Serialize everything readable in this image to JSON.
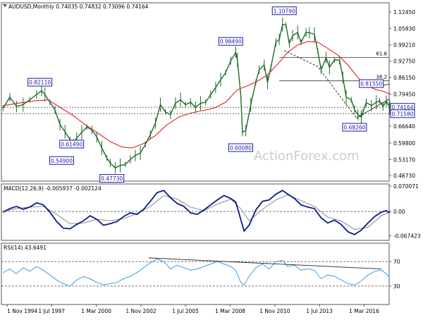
{
  "chart_data": {
    "type": "line",
    "symbol": "AUDUSD,Monthly",
    "ohlc": {
      "open": "0.74035",
      "high": "0.74832",
      "low": "0.73096",
      "close": "0.74164"
    },
    "watermark": "ActionForex.com",
    "colors": {
      "price": "#1d6b2a",
      "ma": "#e02020",
      "macd": "#0a1a8c",
      "signal": "#8a8a8a",
      "rsi": "#3aa0e6",
      "box_border": "#1a1aa0",
      "box_text": "#1a1aa0",
      "box_fill": "#ffffff",
      "grid": "#444444"
    },
    "x_ticks": [
      "1 Nov 1994",
      "1 Jul 1997",
      "1 Mar 2000",
      "1 Nov 2002",
      "1 Jul 2005",
      "1 Mar 2008",
      "1 Nov 2010",
      "1 Jul 2013",
      "1 Mar 2016"
    ],
    "x_range": [
      "1994-07",
      "2017-09"
    ],
    "price_panel": {
      "ylim": [
        0.445,
        1.161
      ],
      "y_ticks": [
        "1.12450",
        "1.05830",
        "0.99210",
        "0.92750",
        "0.86150",
        "0.79450",
        "0.73020",
        "0.66640",
        "0.59800",
        "0.53170",
        "0.46730"
      ],
      "current_labels": [
        "0.74164",
        "0.71580"
      ],
      "fib_levels": [
        {
          "label": "61.8",
          "value": 0.9414
        },
        {
          "label": "38.2",
          "value": 0.8478
        }
      ],
      "annotations": [
        {
          "text": "1.10790",
          "date": 2011.4,
          "value": 1.1079
        },
        {
          "text": "0.98490",
          "date": 2008.2,
          "value": 0.9849
        },
        {
          "text": "0.82110",
          "date": 1996.8,
          "value": 0.8211
        },
        {
          "text": "0.81550",
          "date": 2016.6,
          "value": 0.8155
        },
        {
          "text": "0.74164",
          "date": 2017.6,
          "value": 0.74164
        },
        {
          "text": "0.71580",
          "date": 2017.6,
          "value": 0.7158
        },
        {
          "text": "0.68260",
          "date": 2015.6,
          "value": 0.6826
        },
        {
          "text": "0.60080",
          "date": 2008.8,
          "value": 0.6008
        },
        {
          "text": "0.61490",
          "date": 1998.7,
          "value": 0.6149
        },
        {
          "text": "0.54900",
          "date": 1998.1,
          "value": 0.549
        },
        {
          "text": "0.47730",
          "date": 2001.1,
          "value": 0.4773
        }
      ],
      "price_series": [
        [
          1994.6,
          0.738
        ],
        [
          1995.0,
          0.782
        ],
        [
          1995.4,
          0.745
        ],
        [
          1995.8,
          0.752
        ],
        [
          1996.2,
          0.772
        ],
        [
          1996.6,
          0.793
        ],
        [
          1996.9,
          0.808
        ],
        [
          1997.1,
          0.793
        ],
        [
          1997.4,
          0.762
        ],
        [
          1997.7,
          0.731
        ],
        [
          1998.0,
          0.672
        ],
        [
          1998.3,
          0.643
        ],
        [
          1998.6,
          0.612
        ],
        [
          1998.8,
          0.598
        ],
        [
          1999.0,
          0.618
        ],
        [
          1999.3,
          0.641
        ],
        [
          1999.6,
          0.662
        ],
        [
          1999.9,
          0.651
        ],
        [
          2000.2,
          0.622
        ],
        [
          2000.5,
          0.578
        ],
        [
          2000.8,
          0.538
        ],
        [
          2001.0,
          0.518
        ],
        [
          2001.3,
          0.498
        ],
        [
          2001.6,
          0.508
        ],
        [
          2001.9,
          0.512
        ],
        [
          2002.2,
          0.532
        ],
        [
          2002.5,
          0.548
        ],
        [
          2002.8,
          0.558
        ],
        [
          2003.1,
          0.592
        ],
        [
          2003.4,
          0.632
        ],
        [
          2003.7,
          0.678
        ],
        [
          2004.0,
          0.752
        ],
        [
          2004.3,
          0.723
        ],
        [
          2004.6,
          0.712
        ],
        [
          2004.9,
          0.758
        ],
        [
          2005.2,
          0.772
        ],
        [
          2005.5,
          0.752
        ],
        [
          2005.8,
          0.762
        ],
        [
          2006.1,
          0.741
        ],
        [
          2006.4,
          0.758
        ],
        [
          2006.7,
          0.762
        ],
        [
          2007.0,
          0.792
        ],
        [
          2007.3,
          0.821
        ],
        [
          2007.6,
          0.852
        ],
        [
          2007.9,
          0.881
        ],
        [
          2008.2,
          0.928
        ],
        [
          2008.5,
          0.962
        ],
        [
          2008.6,
          0.932
        ],
        [
          2008.8,
          0.792
        ],
        [
          2008.9,
          0.642
        ],
        [
          2009.1,
          0.648
        ],
        [
          2009.4,
          0.752
        ],
        [
          2009.7,
          0.842
        ],
        [
          2009.9,
          0.892
        ],
        [
          2010.2,
          0.911
        ],
        [
          2010.4,
          0.842
        ],
        [
          2010.6,
          0.902
        ],
        [
          2010.9,
          1.002
        ],
        [
          2011.1,
          1.014
        ],
        [
          2011.3,
          1.074
        ],
        [
          2011.5,
          1.072
        ],
        [
          2011.7,
          0.998
        ],
        [
          2011.9,
          1.029
        ],
        [
          2012.2,
          1.042
        ],
        [
          2012.4,
          1.002
        ],
        [
          2012.7,
          1.042
        ],
        [
          2012.9,
          1.041
        ],
        [
          2013.2,
          1.034
        ],
        [
          2013.4,
          0.968
        ],
        [
          2013.6,
          0.892
        ],
        [
          2013.9,
          0.941
        ],
        [
          2014.1,
          0.902
        ],
        [
          2014.4,
          0.932
        ],
        [
          2014.7,
          0.931
        ],
        [
          2014.9,
          0.862
        ],
        [
          2015.1,
          0.782
        ],
        [
          2015.4,
          0.772
        ],
        [
          2015.6,
          0.732
        ],
        [
          2015.8,
          0.712
        ],
        [
          2016.0,
          0.702
        ],
        [
          2016.1,
          0.722
        ],
        [
          2016.3,
          0.761
        ],
        [
          2016.6,
          0.748
        ],
        [
          2016.9,
          0.762
        ],
        [
          2017.1,
          0.768
        ],
        [
          2017.3,
          0.745
        ],
        [
          2017.5,
          0.766
        ],
        [
          2017.7,
          0.7416
        ]
      ],
      "ma_series": [
        [
          1994.6,
          0.748
        ],
        [
          1995.5,
          0.758
        ],
        [
          1996.5,
          0.768
        ],
        [
          1997.3,
          0.771
        ],
        [
          1998.0,
          0.742
        ],
        [
          1998.8,
          0.708
        ],
        [
          1999.5,
          0.672
        ],
        [
          2000.3,
          0.636
        ],
        [
          2001.0,
          0.604
        ],
        [
          2001.7,
          0.582
        ],
        [
          2002.3,
          0.578
        ],
        [
          2003.0,
          0.596
        ],
        [
          2003.7,
          0.628
        ],
        [
          2004.4,
          0.672
        ],
        [
          2005.1,
          0.702
        ],
        [
          2005.8,
          0.718
        ],
        [
          2006.5,
          0.728
        ],
        [
          2007.2,
          0.738
        ],
        [
          2007.9,
          0.762
        ],
        [
          2008.6,
          0.812
        ],
        [
          2009.2,
          0.828
        ],
        [
          2009.8,
          0.846
        ],
        [
          2010.4,
          0.872
        ],
        [
          2011.0,
          0.914
        ],
        [
          2011.6,
          0.962
        ],
        [
          2012.2,
          0.992
        ],
        [
          2012.8,
          1.006
        ],
        [
          2013.4,
          1.003
        ],
        [
          2014.0,
          0.978
        ],
        [
          2014.6,
          0.951
        ],
        [
          2015.2,
          0.912
        ],
        [
          2015.8,
          0.861
        ],
        [
          2016.4,
          0.826
        ],
        [
          2016.9,
          0.812
        ],
        [
          2017.3,
          0.806
        ],
        [
          2017.7,
          0.795
        ]
      ],
      "trendlines": [
        {
          "points": [
            [
              2011.4,
              0.97
            ],
            [
              2013.4,
              0.905
            ],
            [
              2015.7,
              0.7
            ]
          ],
          "dash": true
        },
        {
          "points": [
            [
              2015.7,
              0.698
            ],
            [
              2017.7,
              0.776
            ]
          ],
          "dash": false
        },
        {
          "points": [
            [
              2016.7,
              0.822
            ],
            [
              2017.7,
              0.835
            ]
          ],
          "dash": false
        }
      ]
    },
    "macd_panel": {
      "title": "MACD(12,26,9) -0.005937 -0.002124",
      "ylim": [
        -0.08,
        0.076
      ],
      "y_ticks": [
        "0.070071",
        "0.00",
        "-0.067423"
      ],
      "macd_series": [
        [
          1994.6,
          -0.002
        ],
        [
          1995.0,
          0.008
        ],
        [
          1995.4,
          0.014
        ],
        [
          1995.8,
          0.006
        ],
        [
          1996.2,
          0.012
        ],
        [
          1996.6,
          0.024
        ],
        [
          1997.0,
          0.018
        ],
        [
          1997.4,
          -0.002
        ],
        [
          1997.8,
          -0.028
        ],
        [
          1998.2,
          -0.046
        ],
        [
          1998.6,
          -0.048
        ],
        [
          1999.0,
          -0.036
        ],
        [
          1999.4,
          -0.026
        ],
        [
          1999.8,
          -0.012
        ],
        [
          2000.2,
          -0.022
        ],
        [
          2000.6,
          -0.038
        ],
        [
          2001.0,
          -0.034
        ],
        [
          2001.4,
          -0.028
        ],
        [
          2001.8,
          -0.014
        ],
        [
          2002.2,
          -0.004
        ],
        [
          2002.6,
          -0.008
        ],
        [
          2003.0,
          0.006
        ],
        [
          2003.4,
          0.028
        ],
        [
          2003.8,
          0.052
        ],
        [
          2004.2,
          0.058
        ],
        [
          2004.6,
          0.038
        ],
        [
          2005.0,
          0.022
        ],
        [
          2005.4,
          0.014
        ],
        [
          2005.8,
          -0.004
        ],
        [
          2006.2,
          -0.008
        ],
        [
          2006.6,
          0.004
        ],
        [
          2007.0,
          0.018
        ],
        [
          2007.4,
          0.032
        ],
        [
          2007.8,
          0.044
        ],
        [
          2008.2,
          0.036
        ],
        [
          2008.5,
          0.026
        ],
        [
          2008.8,
          -0.022
        ],
        [
          2009.0,
          -0.054
        ],
        [
          2009.3,
          -0.038
        ],
        [
          2009.7,
          0.004
        ],
        [
          2010.1,
          0.028
        ],
        [
          2010.5,
          0.032
        ],
        [
          2010.9,
          0.048
        ],
        [
          2011.3,
          0.058
        ],
        [
          2011.6,
          0.048
        ],
        [
          2012.0,
          0.036
        ],
        [
          2012.4,
          0.018
        ],
        [
          2012.8,
          0.012
        ],
        [
          2013.2,
          0.008
        ],
        [
          2013.6,
          -0.018
        ],
        [
          2014.0,
          -0.032
        ],
        [
          2014.4,
          -0.024
        ],
        [
          2014.8,
          -0.036
        ],
        [
          2015.2,
          -0.056
        ],
        [
          2015.6,
          -0.064
        ],
        [
          2016.0,
          -0.052
        ],
        [
          2016.4,
          -0.032
        ],
        [
          2016.8,
          -0.014
        ],
        [
          2017.2,
          -0.002
        ],
        [
          2017.5,
          0.002
        ],
        [
          2017.7,
          -0.004
        ]
      ],
      "signal_series": [
        [
          1994.6,
          0.0
        ],
        [
          1995.4,
          0.008
        ],
        [
          1996.2,
          0.012
        ],
        [
          1997.0,
          0.014
        ],
        [
          1997.8,
          -0.008
        ],
        [
          1998.6,
          -0.034
        ],
        [
          1999.4,
          -0.032
        ],
        [
          2000.2,
          -0.022
        ],
        [
          2001.0,
          -0.026
        ],
        [
          2001.8,
          -0.02
        ],
        [
          2002.6,
          -0.006
        ],
        [
          2003.4,
          0.014
        ],
        [
          2004.2,
          0.044
        ],
        [
          2005.0,
          0.034
        ],
        [
          2005.8,
          0.012
        ],
        [
          2006.6,
          0.002
        ],
        [
          2007.4,
          0.02
        ],
        [
          2008.2,
          0.034
        ],
        [
          2008.8,
          0.008
        ],
        [
          2009.3,
          -0.026
        ],
        [
          2010.1,
          0.006
        ],
        [
          2010.9,
          0.032
        ],
        [
          2011.6,
          0.046
        ],
        [
          2012.4,
          0.03
        ],
        [
          2013.2,
          0.014
        ],
        [
          2014.0,
          -0.016
        ],
        [
          2014.8,
          -0.026
        ],
        [
          2015.6,
          -0.05
        ],
        [
          2016.4,
          -0.044
        ],
        [
          2017.2,
          -0.012
        ],
        [
          2017.7,
          -0.002
        ]
      ]
    },
    "rsi_panel": {
      "title": "RSI(14) 43.6491",
      "ylim": [
        0,
        100
      ],
      "y_ticks": [
        "70",
        "30"
      ],
      "rsi_series": [
        [
          1994.6,
          52
        ],
        [
          1995.0,
          58
        ],
        [
          1995.4,
          50
        ],
        [
          1995.8,
          60
        ],
        [
          1996.2,
          54
        ],
        [
          1996.6,
          62
        ],
        [
          1997.0,
          56
        ],
        [
          1997.4,
          48
        ],
        [
          1997.8,
          40
        ],
        [
          1998.2,
          34
        ],
        [
          1998.6,
          30
        ],
        [
          1999.0,
          40
        ],
        [
          1999.4,
          46
        ],
        [
          1999.8,
          42
        ],
        [
          2000.2,
          36
        ],
        [
          2000.6,
          32
        ],
        [
          2001.0,
          34
        ],
        [
          2001.4,
          36
        ],
        [
          2001.8,
          42
        ],
        [
          2002.2,
          46
        ],
        [
          2002.6,
          52
        ],
        [
          2003.0,
          60
        ],
        [
          2003.4,
          68
        ],
        [
          2003.8,
          74
        ],
        [
          2004.2,
          70
        ],
        [
          2004.6,
          58
        ],
        [
          2005.0,
          64
        ],
        [
          2005.4,
          60
        ],
        [
          2005.8,
          56
        ],
        [
          2006.2,
          58
        ],
        [
          2006.6,
          62
        ],
        [
          2007.0,
          66
        ],
        [
          2007.4,
          70
        ],
        [
          2007.8,
          66
        ],
        [
          2008.2,
          62
        ],
        [
          2008.5,
          56
        ],
        [
          2008.8,
          36
        ],
        [
          2009.0,
          32
        ],
        [
          2009.3,
          46
        ],
        [
          2009.7,
          60
        ],
        [
          2010.1,
          66
        ],
        [
          2010.5,
          58
        ],
        [
          2010.9,
          70
        ],
        [
          2011.3,
          72
        ],
        [
          2011.6,
          62
        ],
        [
          2012.0,
          64
        ],
        [
          2012.4,
          56
        ],
        [
          2012.8,
          58
        ],
        [
          2013.2,
          56
        ],
        [
          2013.6,
          42
        ],
        [
          2014.0,
          48
        ],
        [
          2014.4,
          46
        ],
        [
          2014.8,
          40
        ],
        [
          2015.2,
          34
        ],
        [
          2015.6,
          32
        ],
        [
          2016.0,
          38
        ],
        [
          2016.4,
          48
        ],
        [
          2016.8,
          54
        ],
        [
          2017.2,
          56
        ],
        [
          2017.5,
          50
        ],
        [
          2017.7,
          43.6
        ]
      ],
      "trendline": [
        [
          2003.3,
          76
        ],
        [
          2017.2,
          58
        ]
      ]
    }
  }
}
